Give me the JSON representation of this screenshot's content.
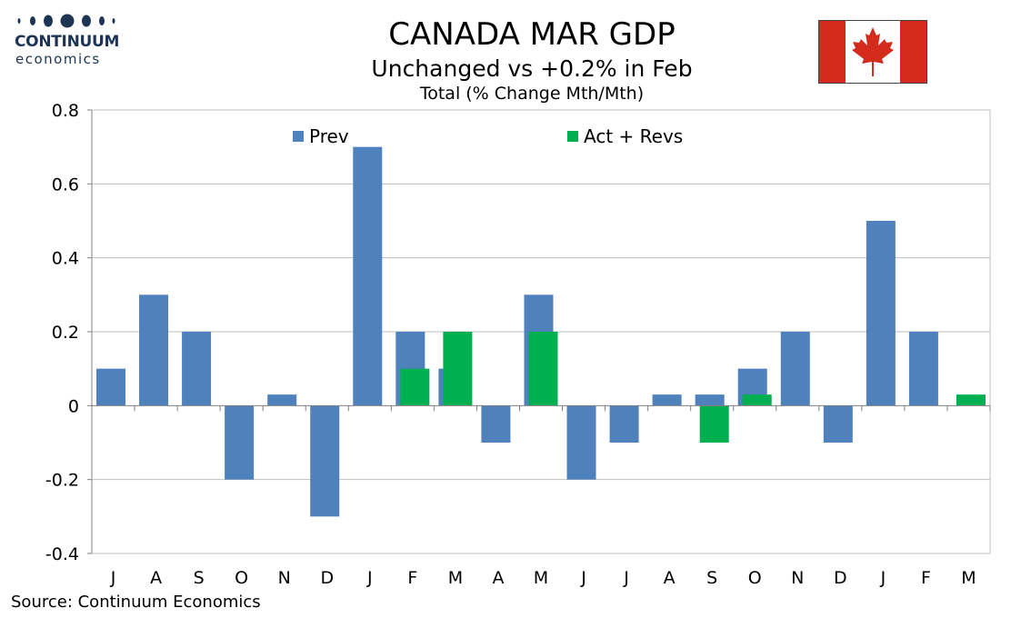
{
  "logo": {
    "brand": "CONTINUUM",
    "sub": "economics",
    "color": "#1d3553"
  },
  "header": {
    "title": "CANADA MAR GDP",
    "subtitle": "Unchanged vs +0.2% in Feb",
    "subsubtitle": "Total (% Change Mth/Mth)"
  },
  "flag": {
    "icon": "canada-flag-icon",
    "red": "#d52b1e",
    "white": "#ffffff"
  },
  "source": "Source: Continuum Economics",
  "chart_data": {
    "type": "bar",
    "categories": [
      "J",
      "A",
      "S",
      "O",
      "N",
      "D",
      "J",
      "F",
      "M",
      "A",
      "M",
      "J",
      "J",
      "A",
      "S",
      "O",
      "N",
      "D",
      "J",
      "F",
      "M"
    ],
    "series": [
      {
        "name": "Prev",
        "color": "#4f81bd",
        "values": [
          0.1,
          0.3,
          0.2,
          -0.2,
          0.03,
          -0.3,
          0.7,
          0.2,
          0.1,
          -0.1,
          0.3,
          -0.2,
          -0.1,
          0.03,
          0.03,
          0.1,
          0.2,
          -0.1,
          0.5,
          0.2,
          null
        ]
      },
      {
        "name": "Act + Revs",
        "color": "#00b050",
        "values": [
          null,
          null,
          null,
          null,
          null,
          null,
          null,
          0.1,
          0.2,
          null,
          0.2,
          null,
          null,
          null,
          -0.1,
          0.03,
          null,
          null,
          null,
          null,
          0.03
        ]
      }
    ],
    "ylim": [
      -0.4,
      0.8
    ],
    "yticks": [
      -0.4,
      -0.2,
      0,
      0.2,
      0.4,
      0.6,
      0.8
    ],
    "ytick_labels": [
      "-0.4",
      "-0.2",
      "0",
      "0.2",
      "0.4",
      "0.6",
      "0.8"
    ],
    "grid": true,
    "legend_position": "top"
  }
}
